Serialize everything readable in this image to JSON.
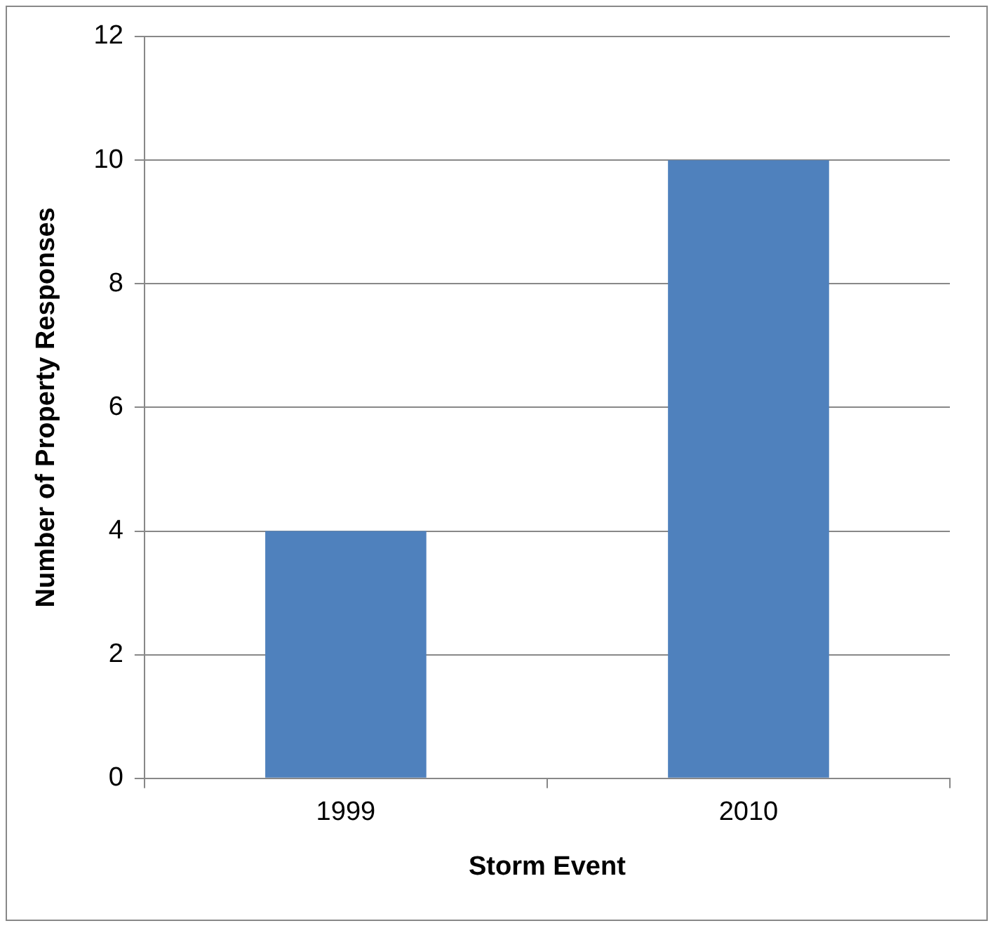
{
  "chart_data": {
    "type": "bar",
    "xlabel": "Storm Event",
    "ylabel": "Number of Property Responses",
    "categories": [
      "1999",
      "2010"
    ],
    "series": [
      {
        "color": "#4f81bd",
        "values": [
          4,
          10
        ]
      }
    ],
    "ylim": [
      0,
      12
    ],
    "yticks": [
      0,
      2,
      4,
      6,
      8,
      10,
      12
    ],
    "grid": "y",
    "legend": false
  }
}
